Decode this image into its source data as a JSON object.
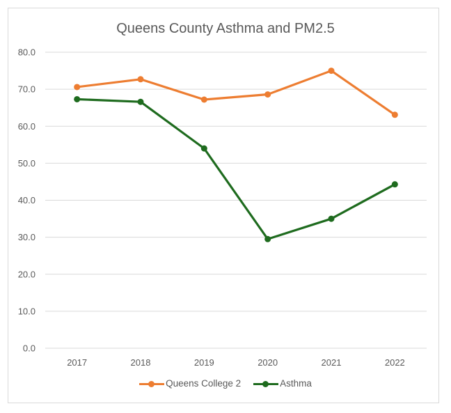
{
  "chart_data": {
    "type": "line",
    "title": "Queens County Asthma and PM2.5",
    "xlabel": "",
    "ylabel": "",
    "categories": [
      "2017",
      "2018",
      "2019",
      "2020",
      "2021",
      "2022"
    ],
    "ylim": [
      0,
      80
    ],
    "yticks": [
      "0.0",
      "10.0",
      "20.0",
      "30.0",
      "40.0",
      "50.0",
      "60.0",
      "70.0",
      "80.0"
    ],
    "grid": true,
    "legend_position": "bottom",
    "series": [
      {
        "name": "Queens College 2",
        "color": "#ed7d31",
        "values": [
          70.6,
          72.7,
          67.2,
          68.6,
          75.0,
          63.1
        ]
      },
      {
        "name": "Asthma",
        "color": "#1e6b1e",
        "values": [
          67.3,
          66.6,
          54.0,
          29.5,
          35.0,
          44.3
        ]
      }
    ]
  }
}
